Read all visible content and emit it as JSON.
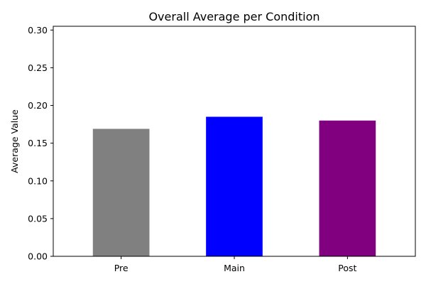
{
  "chart_data": {
    "type": "bar",
    "title": "Overall Average per Condition",
    "xlabel": "",
    "ylabel": "Average Value",
    "categories": [
      "Pre",
      "Main",
      "Post"
    ],
    "values": [
      0.169,
      0.185,
      0.18
    ],
    "colors": [
      "#808080",
      "#0000ff",
      "#800080"
    ],
    "ylim": [
      0,
      0.305
    ],
    "yticks": [
      0.0,
      0.05,
      0.1,
      0.15,
      0.2,
      0.25,
      0.3
    ],
    "ytick_labels": [
      "0.00",
      "0.05",
      "0.10",
      "0.15",
      "0.20",
      "0.25",
      "0.30"
    ],
    "grid": false,
    "legend": "none"
  }
}
